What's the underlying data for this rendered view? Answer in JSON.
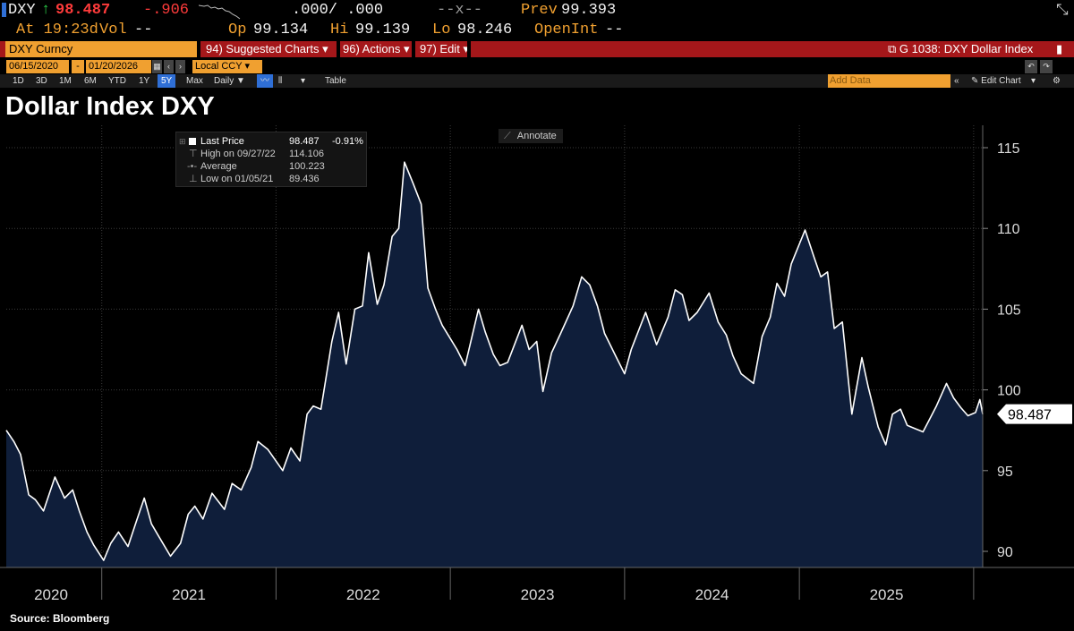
{
  "quote": {
    "ticker": "DXY",
    "last": "98.487",
    "change": "-.906",
    "bid_ask": ".000/ .000",
    "size": "--x--",
    "prev_label": "Prev",
    "prev": "99.393",
    "time": "At 19:23d",
    "vol_label": "Vol",
    "vol": "--",
    "op_label": "Op",
    "op": "99.134",
    "hi_label": "Hi",
    "hi": "99.139",
    "lo_label": "Lo",
    "lo": "98.246",
    "openint_label": "OpenInt",
    "openint": "--"
  },
  "menu": {
    "security": "DXY Curncy",
    "suggested": "94) Suggested Charts",
    "actions": "96) Actions",
    "edit": "97) Edit",
    "chart_id": "G 1038: DXY Dollar Index"
  },
  "dates": {
    "start": "06/15/2020",
    "end": "01/20/2026",
    "currency": "Local CCY"
  },
  "periods": [
    "1D",
    "3D",
    "1M",
    "6M",
    "YTD",
    "1Y",
    "5Y",
    "Max"
  ],
  "period_selected": "5Y",
  "frequency": "Daily",
  "table_label": "Table",
  "add_data_placeholder": "Add Data",
  "edit_chart_label": "Edit Chart",
  "annotate_label": "Annotate",
  "legend": {
    "last_label": "Last Price",
    "last_value": "98.487",
    "last_change": "-0.91%",
    "high_label": "High on 09/27/22",
    "high_value": "114.106",
    "avg_label": "Average",
    "avg_value": "100.223",
    "low_label": "Low on 01/05/21",
    "low_value": "89.436"
  },
  "source": "Source: Bloomberg",
  "colors": {
    "bloomberg_orange": "#f0a030",
    "menu_red": "#a5171a",
    "area_fill": "#0f1e3a",
    "line": "#ffffff"
  },
  "chart_data": {
    "type": "area",
    "title": "Dollar Index DXY",
    "x_axis_labels": [
      "2020",
      "2021",
      "2022",
      "2023",
      "2024",
      "2025"
    ],
    "y_ticks": [
      90,
      95,
      100,
      105,
      110,
      115
    ],
    "ylim": [
      89,
      116.5
    ],
    "grid": true,
    "last_value_label": "98.487",
    "series": [
      {
        "name": "Last Price",
        "x": [
          "2020-06-15",
          "2020-07-01",
          "2020-07-15",
          "2020-08-01",
          "2020-08-15",
          "2020-09-01",
          "2020-09-25",
          "2020-10-15",
          "2020-11-01",
          "2020-11-15",
          "2020-12-01",
          "2020-12-15",
          "2021-01-05",
          "2021-01-20",
          "2021-02-05",
          "2021-02-25",
          "2021-03-15",
          "2021-03-31",
          "2021-04-15",
          "2021-05-01",
          "2021-05-25",
          "2021-06-15",
          "2021-07-01",
          "2021-07-15",
          "2021-08-01",
          "2021-08-20",
          "2021-09-15",
          "2021-10-01",
          "2021-10-20",
          "2021-11-10",
          "2021-11-24",
          "2021-12-15",
          "2022-01-15",
          "2022-02-01",
          "2022-02-20",
          "2022-03-07",
          "2022-03-20",
          "2022-04-05",
          "2022-04-28",
          "2022-05-12",
          "2022-05-28",
          "2022-06-15",
          "2022-07-01",
          "2022-07-14",
          "2022-08-01",
          "2022-08-15",
          "2022-09-01",
          "2022-09-15",
          "2022-09-27",
          "2022-10-15",
          "2022-11-01",
          "2022-11-15",
          "2022-12-01",
          "2022-12-15",
          "2023-01-15",
          "2023-02-01",
          "2023-03-01",
          "2023-03-15",
          "2023-04-01",
          "2023-04-15",
          "2023-05-01",
          "2023-05-31",
          "2023-06-15",
          "2023-07-01",
          "2023-07-14",
          "2023-08-01",
          "2023-08-20",
          "2023-09-15",
          "2023-10-03",
          "2023-10-20",
          "2023-11-05",
          "2023-11-20",
          "2023-12-15",
          "2024-01-01",
          "2024-01-15",
          "2024-02-14",
          "2024-03-08",
          "2024-04-01",
          "2024-04-16",
          "2024-05-01",
          "2024-05-15",
          "2024-06-01",
          "2024-06-26",
          "2024-07-15",
          "2024-08-01",
          "2024-08-15",
          "2024-09-01",
          "2024-09-27",
          "2024-10-15",
          "2024-11-01",
          "2024-11-15",
          "2024-12-01",
          "2024-12-15",
          "2025-01-13",
          "2025-02-01",
          "2025-02-15",
          "2025-03-01",
          "2025-03-15",
          "2025-04-01",
          "2025-04-21",
          "2025-05-12",
          "2025-05-25",
          "2025-06-15",
          "2025-07-01",
          "2025-07-15",
          "2025-08-01",
          "2025-08-15",
          "2025-09-17",
          "2025-10-01",
          "2025-10-15",
          "2025-11-05",
          "2025-11-20",
          "2025-12-05",
          "2025-12-20",
          "2026-01-05",
          "2026-01-14",
          "2026-01-20"
        ],
        "y": [
          97.5,
          96.8,
          96.0,
          93.5,
          93.2,
          92.5,
          94.6,
          93.3,
          93.8,
          92.5,
          91.2,
          90.4,
          89.44,
          90.5,
          91.2,
          90.3,
          91.9,
          93.3,
          91.7,
          90.9,
          89.7,
          90.5,
          92.3,
          92.8,
          92.0,
          93.6,
          92.6,
          94.2,
          93.8,
          95.2,
          96.8,
          96.3,
          95.0,
          96.4,
          95.6,
          98.5,
          99.0,
          98.8,
          103.0,
          104.8,
          101.6,
          105.0,
          105.2,
          108.5,
          105.3,
          106.5,
          109.5,
          110.0,
          114.1,
          112.8,
          111.5,
          106.3,
          105.0,
          104.0,
          102.5,
          101.5,
          105.0,
          103.6,
          102.2,
          101.5,
          101.7,
          104.0,
          102.5,
          103.0,
          99.9,
          102.3,
          103.5,
          105.2,
          107.0,
          106.5,
          105.2,
          103.5,
          102.0,
          101.0,
          102.5,
          104.8,
          102.8,
          104.5,
          106.2,
          105.9,
          104.3,
          104.8,
          106.0,
          104.2,
          103.4,
          102.1,
          101.0,
          100.4,
          103.3,
          104.5,
          106.6,
          105.8,
          107.8,
          109.9,
          108.2,
          107.0,
          107.3,
          103.8,
          104.2,
          98.5,
          102.0,
          100.2,
          97.7,
          96.6,
          98.5,
          98.8,
          97.8,
          97.4,
          98.2,
          99.0,
          100.4,
          99.5,
          98.9,
          98.4,
          98.6,
          99.4,
          98.5
        ]
      }
    ]
  }
}
